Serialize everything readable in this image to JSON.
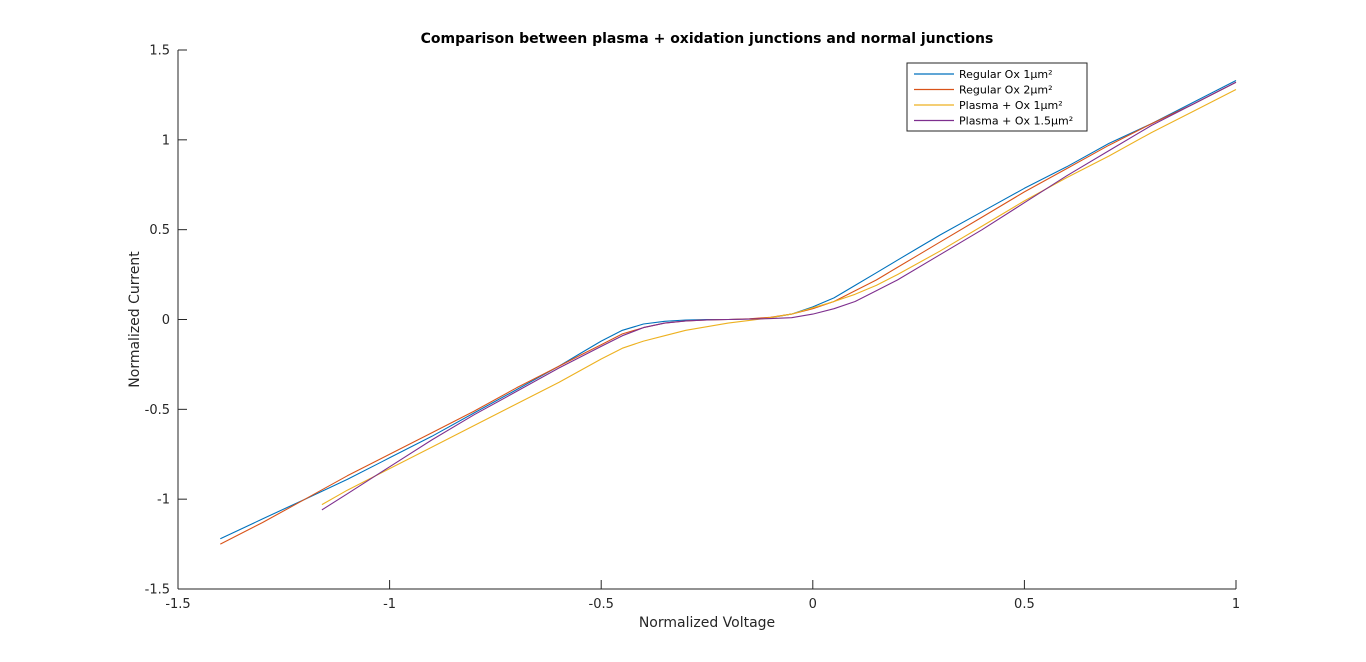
{
  "chart_data": {
    "type": "line",
    "title": "Comparison between plasma + oxidation junctions and normal junctions",
    "xlabel": "Normalized Voltage",
    "ylabel": "Normalized Current",
    "xlim": [
      -1.5,
      1
    ],
    "ylim": [
      -1.5,
      1.5
    ],
    "xticks": [
      -1.5,
      -1,
      -0.5,
      0,
      0.5,
      1
    ],
    "xtick_labels": [
      "-1.5",
      "-1",
      "-0.5",
      "0",
      "0.5",
      "1"
    ],
    "yticks": [
      -1.5,
      -1,
      -0.5,
      0,
      0.5,
      1,
      1.5
    ],
    "ytick_labels": [
      "-1.5",
      "-1",
      "-0.5",
      "0",
      "0.5",
      "1",
      "1.5"
    ],
    "grid": false,
    "legend_position": "top-right",
    "series": [
      {
        "name": "Regular Ox 1µm²",
        "color": "#0072BD",
        "x": [
          -1.4,
          -1.3,
          -1.2,
          -1.1,
          -1.0,
          -0.9,
          -0.8,
          -0.7,
          -0.6,
          -0.55,
          -0.5,
          -0.45,
          -0.4,
          -0.35,
          -0.3,
          -0.25,
          -0.2,
          -0.15,
          -0.1,
          -0.05,
          0.0,
          0.05,
          0.1,
          0.15,
          0.2,
          0.25,
          0.3,
          0.4,
          0.5,
          0.6,
          0.7,
          0.8,
          0.9,
          1.0
        ],
        "y": [
          -1.22,
          -1.11,
          -1.0,
          -0.89,
          -0.77,
          -0.65,
          -0.52,
          -0.39,
          -0.26,
          -0.19,
          -0.12,
          -0.06,
          -0.025,
          -0.01,
          -0.003,
          0.0,
          0.0,
          0.003,
          0.01,
          0.03,
          0.07,
          0.12,
          0.19,
          0.26,
          0.33,
          0.4,
          0.47,
          0.6,
          0.73,
          0.85,
          0.98,
          1.09,
          1.21,
          1.33
        ]
      },
      {
        "name": "Regular Ox 2µm²",
        "color": "#D95319",
        "x": [
          -1.4,
          -1.3,
          -1.2,
          -1.1,
          -1.0,
          -0.9,
          -0.8,
          -0.7,
          -0.6,
          -0.55,
          -0.5,
          -0.45,
          -0.4,
          -0.35,
          -0.3,
          -0.25,
          -0.2,
          -0.15,
          -0.1,
          -0.05,
          0.0,
          0.05,
          0.1,
          0.15,
          0.2,
          0.25,
          0.3,
          0.4,
          0.5,
          0.6,
          0.7,
          0.8,
          0.9,
          1.0
        ],
        "y": [
          -1.25,
          -1.13,
          -1.0,
          -0.87,
          -0.75,
          -0.63,
          -0.51,
          -0.38,
          -0.26,
          -0.2,
          -0.14,
          -0.08,
          -0.045,
          -0.02,
          -0.008,
          -0.002,
          0.0,
          0.004,
          0.012,
          0.03,
          0.06,
          0.1,
          0.16,
          0.22,
          0.29,
          0.36,
          0.43,
          0.57,
          0.71,
          0.84,
          0.97,
          1.09,
          1.2,
          1.32
        ]
      },
      {
        "name": "Plasma + Ox 1µm²",
        "color": "#EDB120",
        "x": [
          -1.16,
          -1.1,
          -1.0,
          -0.9,
          -0.8,
          -0.7,
          -0.6,
          -0.5,
          -0.45,
          -0.4,
          -0.35,
          -0.3,
          -0.25,
          -0.2,
          -0.15,
          -0.1,
          -0.05,
          0.0,
          0.05,
          0.1,
          0.15,
          0.2,
          0.3,
          0.4,
          0.5,
          0.6,
          0.7,
          0.8,
          0.9,
          1.0
        ],
        "y": [
          -1.03,
          -0.95,
          -0.83,
          -0.71,
          -0.59,
          -0.47,
          -0.35,
          -0.22,
          -0.16,
          -0.12,
          -0.09,
          -0.06,
          -0.04,
          -0.02,
          -0.005,
          0.01,
          0.03,
          0.065,
          0.1,
          0.14,
          0.19,
          0.25,
          0.38,
          0.52,
          0.66,
          0.79,
          0.91,
          1.04,
          1.16,
          1.28
        ]
      },
      {
        "name": "Plasma + Ox 1.5µm²",
        "color": "#7E2F8E",
        "x": [
          -1.16,
          -1.1,
          -1.0,
          -0.9,
          -0.8,
          -0.7,
          -0.6,
          -0.5,
          -0.45,
          -0.4,
          -0.35,
          -0.3,
          -0.25,
          -0.2,
          -0.15,
          -0.1,
          -0.05,
          0.0,
          0.05,
          0.1,
          0.15,
          0.2,
          0.3,
          0.4,
          0.5,
          0.6,
          0.7,
          0.8,
          0.9,
          1.0
        ],
        "y": [
          -1.06,
          -0.97,
          -0.82,
          -0.67,
          -0.53,
          -0.4,
          -0.27,
          -0.15,
          -0.09,
          -0.045,
          -0.02,
          -0.008,
          -0.002,
          0.0,
          0.002,
          0.005,
          0.01,
          0.03,
          0.06,
          0.1,
          0.16,
          0.22,
          0.36,
          0.5,
          0.65,
          0.8,
          0.94,
          1.08,
          1.2,
          1.32
        ]
      }
    ]
  }
}
